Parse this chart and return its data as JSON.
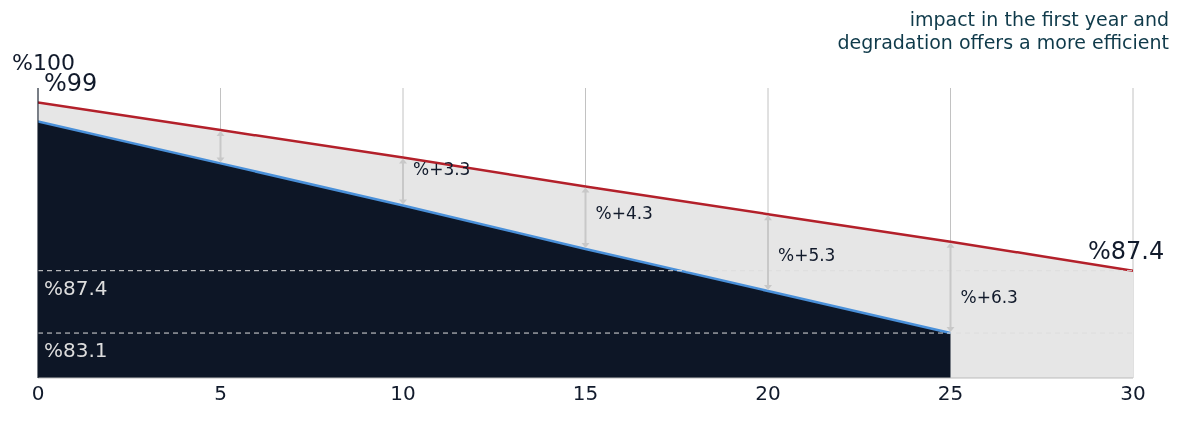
{
  "chart_data": {
    "type": "area",
    "title": "impact in the first year and",
    "subtitle": "degradation offers a more efficient",
    "annotations": [
      "%100",
      {
        "text": "%+3.3",
        "x": 10,
        "y": 91.9
      },
      {
        "text": "%+4.3",
        "x": 15,
        "y": 88.9
      },
      {
        "text": "%+5.3",
        "x": 20,
        "y": 86.0
      },
      {
        "text": "%+6.3",
        "x": 25,
        "y": 83.1
      }
    ],
    "x": [
      0,
      5,
      10,
      15,
      20,
      25,
      30
    ],
    "series": [
      {
        "color": "#b3202a",
        "values": [
          99,
          97.1,
          95.2,
          93.2,
          91.3,
          89.4,
          87.4
        ],
        "value_labels": [
          "%99",
          null,
          null,
          null,
          null,
          null,
          "%87.4"
        ]
      },
      {
        "color": "#4a90d9",
        "values": [
          97.7,
          94.8,
          91.9,
          88.9,
          86.0,
          83.1,
          null
        ]
      }
    ],
    "xlim": [
      0,
      30
    ],
    "xticks": [
      0,
      5,
      10,
      15,
      20,
      25,
      30
    ],
    "ylim": [
      80,
      100
    ],
    "grid": "x",
    "ref_lines": [
      {
        "axis": "y",
        "value": 87.4,
        "label": "%87.4",
        "color": "#dddddd",
        "line_style": "dashed"
      },
      {
        "axis": "y",
        "value": 83.1,
        "label": "%83.1",
        "color": "#dddddd",
        "line_style": "dashed"
      }
    ]
  }
}
